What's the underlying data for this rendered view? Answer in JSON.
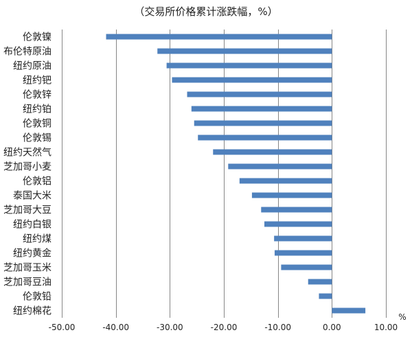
{
  "chart_data": {
    "type": "bar",
    "orientation": "horizontal",
    "title": "（交易所价格累计涨跌幅，%）",
    "xlabel": "%",
    "ylabel": "",
    "xlim": [
      -50,
      10
    ],
    "ticks": [
      "-50.00",
      "-40.00",
      "-30.00",
      "-20.00",
      "-10.00",
      "0.00",
      "10.00"
    ],
    "tick_values": [
      -50,
      -40,
      -30,
      -20,
      -10,
      0,
      10
    ],
    "grid": true,
    "bar_color": "#4F81BD",
    "categories": [
      "伦敦镍",
      "布伦特原油",
      "纽约原油",
      "纽约钯",
      "伦敦锌",
      "纽约铂",
      "伦敦铜",
      "伦敦锡",
      "纽约天然气",
      "芝加哥小麦",
      "伦敦铝",
      "泰国大米",
      "芝加哥大豆",
      "纽约白银",
      "纽约煤",
      "纽约黄金",
      "芝加哥玉米",
      "芝加哥豆油",
      "伦敦铅",
      "纽约棉花"
    ],
    "values": [
      -41.8,
      -32.3,
      -30.6,
      -29.6,
      -26.8,
      -26.0,
      -25.5,
      -24.8,
      -22.0,
      -19.2,
      -17.1,
      -14.8,
      -13.1,
      -12.5,
      -10.7,
      -10.6,
      -9.4,
      -4.4,
      -2.4,
      6.2
    ]
  }
}
